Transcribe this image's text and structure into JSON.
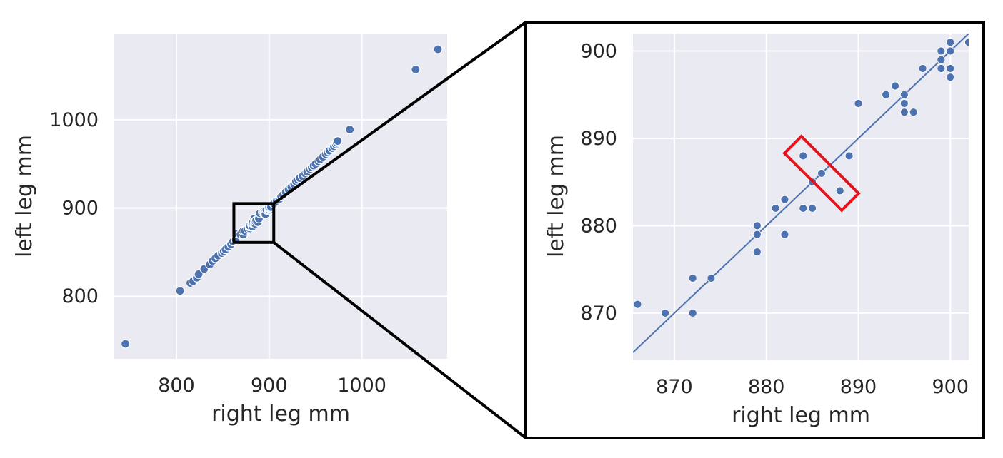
{
  "chart_data": [
    {
      "type": "scatter",
      "panel": "overview",
      "xlabel": "right leg mm",
      "ylabel": "left leg mm",
      "xlim": [
        733,
        1092
      ],
      "ylim": [
        729,
        1097
      ],
      "xticks": [
        800,
        900,
        1000
      ],
      "yticks": [
        800,
        900,
        1000
      ],
      "grid": true,
      "background": "#eaeaf2",
      "point_color": "#4c72b0",
      "points": [
        [
          745,
          746
        ],
        [
          804,
          806
        ],
        [
          815,
          815
        ],
        [
          818,
          817
        ],
        [
          822,
          821
        ],
        [
          824,
          825
        ],
        [
          830,
          831
        ],
        [
          836,
          836
        ],
        [
          839,
          840
        ],
        [
          842,
          843
        ],
        [
          845,
          846
        ],
        [
          849,
          849
        ],
        [
          851,
          851
        ],
        [
          853,
          853
        ],
        [
          856,
          856
        ],
        [
          859,
          859
        ],
        [
          861,
          862
        ],
        [
          864,
          864
        ],
        [
          866,
          871
        ],
        [
          869,
          870
        ],
        [
          872,
          870
        ],
        [
          872,
          874
        ],
        [
          874,
          874
        ],
        [
          877,
          876
        ],
        [
          879,
          877
        ],
        [
          879,
          879
        ],
        [
          879,
          880
        ],
        [
          881,
          882
        ],
        [
          882,
          879
        ],
        [
          882,
          883
        ],
        [
          884,
          882
        ],
        [
          884,
          888
        ],
        [
          885,
          882
        ],
        [
          885,
          885
        ],
        [
          886,
          886
        ],
        [
          888,
          884
        ],
        [
          889,
          888
        ],
        [
          890,
          894
        ],
        [
          893,
          895
        ],
        [
          894,
          896
        ],
        [
          895,
          893
        ],
        [
          895,
          894
        ],
        [
          895,
          895
        ],
        [
          896,
          893
        ],
        [
          897,
          898
        ],
        [
          899,
          898
        ],
        [
          899,
          899
        ],
        [
          899,
          900
        ],
        [
          900,
          897
        ],
        [
          900,
          898
        ],
        [
          900,
          900
        ],
        [
          900,
          901
        ],
        [
          902,
          901
        ],
        [
          905,
          905
        ],
        [
          908,
          908
        ],
        [
          911,
          910
        ],
        [
          913,
          913
        ],
        [
          915,
          915
        ],
        [
          918,
          918
        ],
        [
          921,
          921
        ],
        [
          924,
          924
        ],
        [
          927,
          927
        ],
        [
          929,
          930
        ],
        [
          931,
          932
        ],
        [
          933,
          934
        ],
        [
          936,
          936
        ],
        [
          939,
          939
        ],
        [
          941,
          941
        ],
        [
          944,
          944
        ],
        [
          946,
          946
        ],
        [
          948,
          948
        ],
        [
          950,
          950
        ],
        [
          953,
          953
        ],
        [
          955,
          955
        ],
        [
          958,
          958
        ],
        [
          961,
          961
        ],
        [
          963,
          963
        ],
        [
          965,
          965
        ],
        [
          968,
          968
        ],
        [
          970,
          970
        ],
        [
          972,
          972
        ],
        [
          973,
          974
        ],
        [
          974,
          976
        ],
        [
          987,
          989
        ],
        [
          1058,
          1057
        ],
        [
          1082,
          1080
        ]
      ],
      "zoom_box": {
        "x": [
          862,
          905
        ],
        "y": [
          861,
          905
        ]
      }
    },
    {
      "type": "scatter",
      "panel": "zoom",
      "xlabel": "right leg mm",
      "ylabel": "left leg mm",
      "xlim": [
        865.5,
        902
      ],
      "ylim": [
        864.6,
        902
      ],
      "xticks": [
        870,
        880,
        890,
        900
      ],
      "yticks": [
        870,
        880,
        890,
        900
      ],
      "grid": true,
      "background": "#eaeaf2",
      "point_color": "#4c72b0",
      "line_color": "#4c72b0",
      "fit_line": {
        "slope": 1.0,
        "intercept": 0
      },
      "highlight_color": "#e8101b",
      "highlight": {
        "center": [
          886,
          886
        ],
        "angle_deg": -45,
        "length": 8.8,
        "width": 2.6
      },
      "points": [
        [
          866,
          871
        ],
        [
          869,
          870
        ],
        [
          872,
          870
        ],
        [
          872,
          874
        ],
        [
          874,
          874
        ],
        [
          879,
          877
        ],
        [
          879,
          879
        ],
        [
          879,
          880
        ],
        [
          881,
          882
        ],
        [
          882,
          879
        ],
        [
          882,
          883
        ],
        [
          884,
          882
        ],
        [
          884,
          888
        ],
        [
          885,
          882
        ],
        [
          885,
          885
        ],
        [
          886,
          886
        ],
        [
          888,
          884
        ],
        [
          889,
          888
        ],
        [
          890,
          894
        ],
        [
          893,
          895
        ],
        [
          894,
          896
        ],
        [
          895,
          893
        ],
        [
          895,
          894
        ],
        [
          895,
          895
        ],
        [
          896,
          893
        ],
        [
          897,
          898
        ],
        [
          899,
          898
        ],
        [
          899,
          899
        ],
        [
          899,
          900
        ],
        [
          900,
          897
        ],
        [
          900,
          898
        ],
        [
          900,
          900
        ],
        [
          900,
          901
        ],
        [
          902,
          901
        ]
      ]
    }
  ]
}
